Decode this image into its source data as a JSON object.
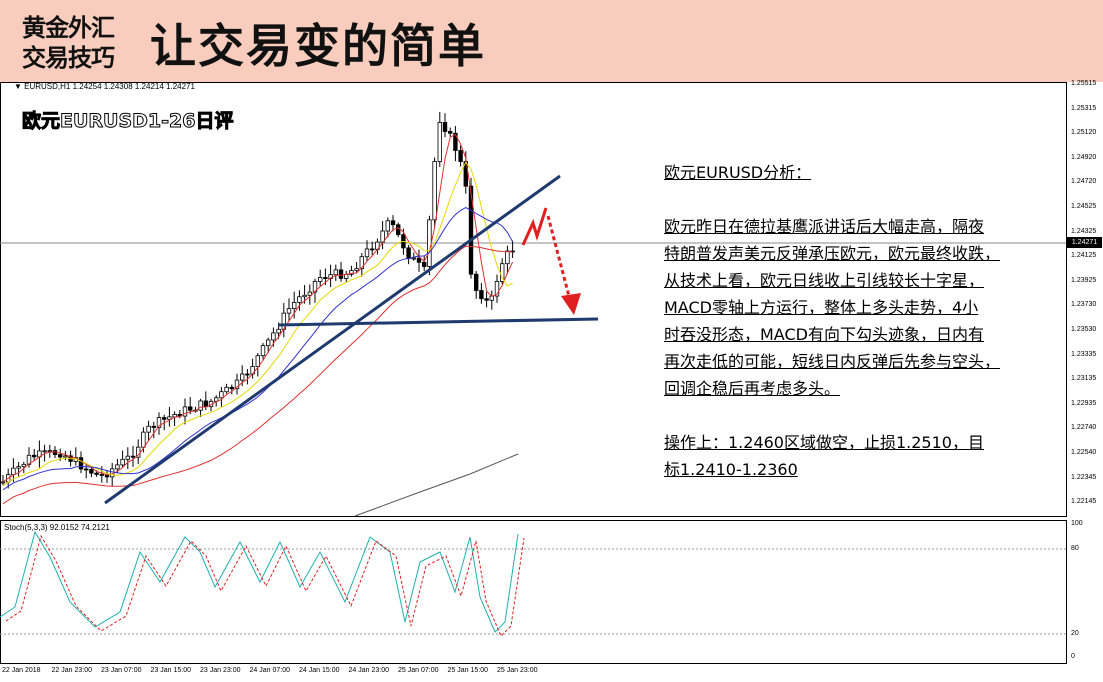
{
  "header": {
    "brand_line1": "黄金外汇",
    "brand_line2": "交易技巧",
    "slogan": "让交易变的简单"
  },
  "chart": {
    "symbol_info": "▼ EURUSD,H1  1.24254 1.24308 1.24214 1.24271",
    "overlay_title": "欧元EURUSD1-26日评",
    "current_price": "1.24271",
    "price_axis": [
      "1.25515",
      "1.25315",
      "1.25120",
      "1.24920",
      "1.24720",
      "1.24525",
      "1.24325",
      "1.24125",
      "1.23925",
      "1.23730",
      "1.23530",
      "1.23335",
      "1.23135",
      "1.22935",
      "1.22740",
      "1.22540",
      "1.22345",
      "1.22145"
    ],
    "stoch_label": "Stoch(5,3,3) 92.0152 74.2121",
    "stoch_levels": [
      "100",
      "80",
      "20",
      "0"
    ],
    "time_axis": [
      "22 Jan 2018",
      "22 Jan 23:00",
      "23 Jan 07:00",
      "23 Jan 15:00",
      "23 Jan 23:00",
      "24 Jan 07:00",
      "24 Jan 15:00",
      "24 Jan 23:00",
      "25 Jan 07:00",
      "25 Jan 15:00",
      "25 Jan 23:00"
    ],
    "colors": {
      "bull": "#ffffff",
      "bear": "#000000",
      "trendline": "#1f3a6e",
      "arrow": "#e02020",
      "ma_red": "#e03030",
      "ma_yellow": "#e8d800",
      "ma_blue": "#3030d0",
      "ma_gray": "#555555",
      "stoch_main": "#20b0b0",
      "stoch_signal": "#e02020"
    }
  },
  "analysis": {
    "heading": "欧元EURUSD分析：",
    "lines": [
      "欧元昨日在德拉基鹰派讲话后大幅走高，隔夜",
      "特朗普发声美元反弹承压欧元，欧元最终收跌，",
      "从技术上看，欧元日线收上引线较长十字星，",
      "MACD零轴上方运行，整体上多头走势，4小",
      "时吞没形态，MACD有向下勾头迹象，日内有",
      "再次走低的可能，短线日内反弹后先参与空头，",
      "回调企稳后再考虑多头。"
    ],
    "operation_lines": [
      "操作上：1.2460区域做空，止损1.2510，目",
      "标1.2410-1.2360"
    ]
  }
}
